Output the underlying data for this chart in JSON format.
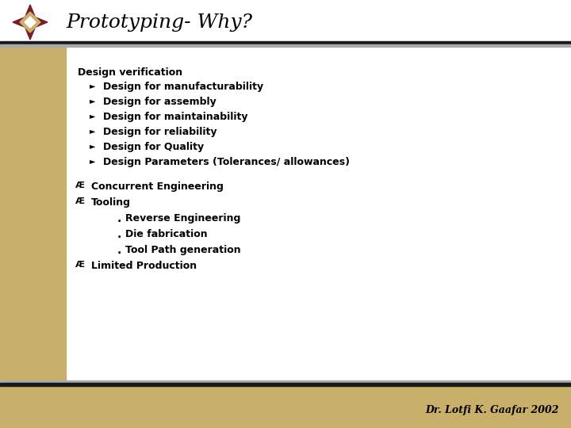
{
  "title": "Prototyping- Why?",
  "title_fontsize": 18,
  "title_color": "#000000",
  "bg_color": "#ffffff",
  "left_bar_color": "#C9B06A",
  "footer_bar_color": "#C9B06A",
  "footer_text": "Dr. Lotfi K. Gaafar 2002",
  "content": {
    "section1_label": "Design verification",
    "section1_items": [
      "Design for manufacturability",
      "Design for assembly",
      "Design for maintainability",
      "Design for reliability",
      "Design for Quality",
      "Design Parameters (Tolerances/ allowances)"
    ],
    "section2_items": [
      "Concurrent Engineering",
      "Tooling"
    ],
    "section3_sub_items": [
      "Reverse Engineering",
      "Die fabrication",
      "Tool Path generation"
    ],
    "section4_items": [
      "Limited Production"
    ]
  },
  "logo_colors": {
    "dark_red": "#7B1C2A",
    "gold": "#C9B06A",
    "white": "#ffffff"
  }
}
